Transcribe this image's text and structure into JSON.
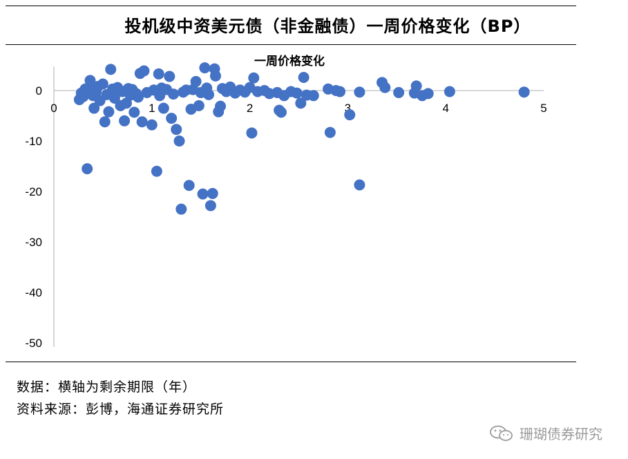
{
  "header": {
    "title": "投机级中资美元债（非金融债）一周价格变化（BP）"
  },
  "chart_data": {
    "type": "scatter",
    "title": "一周价格变化",
    "xlabel": "",
    "ylabel": "",
    "xlim": [
      0,
      5
    ],
    "ylim": [
      -50,
      5
    ],
    "xticks": [
      "0",
      "1",
      "2",
      "3",
      "4",
      "5"
    ],
    "yticks": [
      "0",
      "-10",
      "-20",
      "-30",
      "-40",
      "-50"
    ],
    "grid": false,
    "marker_color": "#4472C4",
    "points": [
      [
        0.26,
        -1.8
      ],
      [
        0.28,
        -0.5
      ],
      [
        0.3,
        -1.2
      ],
      [
        0.32,
        0.3
      ],
      [
        0.34,
        -15.5
      ],
      [
        0.37,
        2.0
      ],
      [
        0.38,
        0.5
      ],
      [
        0.4,
        -1.0
      ],
      [
        0.41,
        -3.5
      ],
      [
        0.43,
        -0.3
      ],
      [
        0.45,
        0.8
      ],
      [
        0.47,
        -2.0
      ],
      [
        0.5,
        1.3
      ],
      [
        0.52,
        -6.2
      ],
      [
        0.54,
        -0.8
      ],
      [
        0.56,
        -4.2
      ],
      [
        0.58,
        4.2
      ],
      [
        0.6,
        0.3
      ],
      [
        0.62,
        -1.5
      ],
      [
        0.65,
        0.6
      ],
      [
        0.68,
        -3.0
      ],
      [
        0.7,
        -0.2
      ],
      [
        0.72,
        -6.0
      ],
      [
        0.74,
        -2.5
      ],
      [
        0.76,
        0.4
      ],
      [
        0.78,
        -0.9
      ],
      [
        0.8,
        0.2
      ],
      [
        0.82,
        -4.3
      ],
      [
        0.84,
        -0.6
      ],
      [
        0.86,
        -1.3
      ],
      [
        0.88,
        3.4
      ],
      [
        0.9,
        -6.2
      ],
      [
        0.92,
        3.9
      ],
      [
        0.95,
        -0.4
      ],
      [
        1.0,
        -6.8
      ],
      [
        1.02,
        0.1
      ],
      [
        1.05,
        -16.0
      ],
      [
        1.07,
        3.3
      ],
      [
        1.08,
        -1.0
      ],
      [
        1.1,
        0.5
      ],
      [
        1.12,
        -3.5
      ],
      [
        1.15,
        0.2
      ],
      [
        1.18,
        2.8
      ],
      [
        1.2,
        -5.5
      ],
      [
        1.22,
        -0.7
      ],
      [
        1.25,
        -7.7
      ],
      [
        1.28,
        -10.0
      ],
      [
        1.3,
        -23.5
      ],
      [
        1.32,
        -0.3
      ],
      [
        1.35,
        0.1
      ],
      [
        1.38,
        -18.8
      ],
      [
        1.4,
        -3.7
      ],
      [
        1.42,
        0.2
      ],
      [
        1.45,
        1.8
      ],
      [
        1.48,
        -3.0
      ],
      [
        1.5,
        -0.4
      ],
      [
        1.52,
        -20.5
      ],
      [
        1.54,
        4.5
      ],
      [
        1.56,
        0.5
      ],
      [
        1.58,
        -0.8
      ],
      [
        1.6,
        -22.8
      ],
      [
        1.62,
        -20.4
      ],
      [
        1.64,
        4.3
      ],
      [
        1.65,
        2.9
      ],
      [
        1.68,
        -4.2
      ],
      [
        1.7,
        -3.1
      ],
      [
        1.72,
        0.4
      ],
      [
        1.76,
        -0.2
      ],
      [
        1.8,
        0.7
      ],
      [
        1.85,
        -0.5
      ],
      [
        1.9,
        0.1
      ],
      [
        1.95,
        -0.3
      ],
      [
        2.0,
        0.6
      ],
      [
        2.02,
        -8.4
      ],
      [
        2.04,
        2.5
      ],
      [
        2.08,
        -0.2
      ],
      [
        2.15,
        0.0
      ],
      [
        2.2,
        -0.6
      ],
      [
        2.28,
        -0.4
      ],
      [
        2.3,
        -3.9
      ],
      [
        2.32,
        -4.3
      ],
      [
        2.35,
        -1.0
      ],
      [
        2.42,
        -0.2
      ],
      [
        2.48,
        -0.5
      ],
      [
        2.52,
        -2.5
      ],
      [
        2.55,
        2.6
      ],
      [
        2.58,
        -0.9
      ],
      [
        2.65,
        -1.0
      ],
      [
        2.8,
        0.3
      ],
      [
        2.82,
        -8.3
      ],
      [
        2.88,
        0.0
      ],
      [
        2.92,
        -0.2
      ],
      [
        3.02,
        -4.8
      ],
      [
        3.12,
        -18.7
      ],
      [
        3.12,
        -0.3
      ],
      [
        3.35,
        1.6
      ],
      [
        3.38,
        0.6
      ],
      [
        3.52,
        -0.4
      ],
      [
        3.68,
        -0.5
      ],
      [
        3.7,
        0.9
      ],
      [
        3.76,
        -1.0
      ],
      [
        3.82,
        -0.6
      ],
      [
        4.04,
        -0.2
      ],
      [
        4.8,
        -0.3
      ]
    ]
  },
  "notes": {
    "line1": "数据：横轴为剩余期限（年）",
    "line2": "资料来源：彭博，海通证券研究所"
  },
  "watermark": {
    "text": "珊瑚债券研究",
    "icon": "wechat-icon"
  }
}
